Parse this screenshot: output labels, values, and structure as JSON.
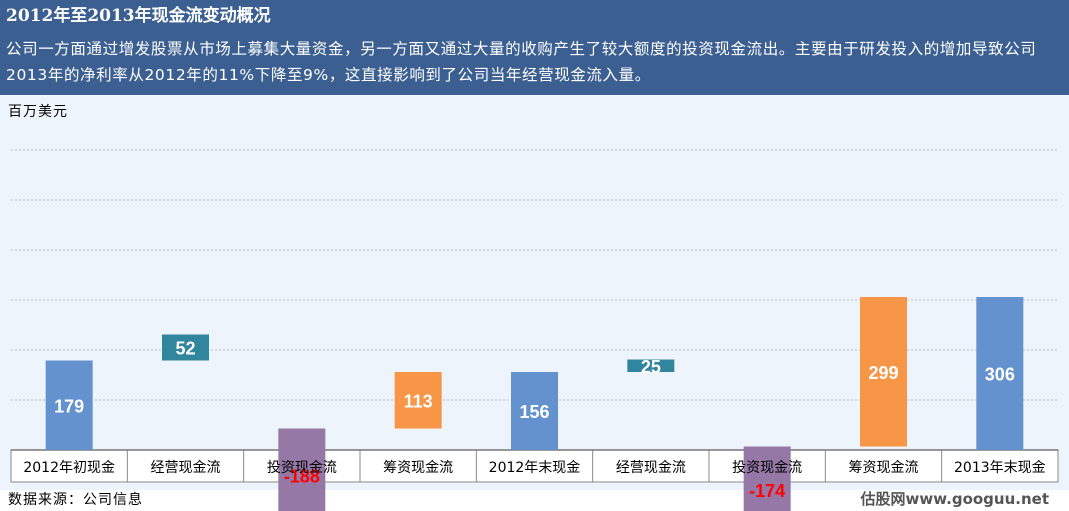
{
  "title": "2012年至2013年现金流变动概况",
  "subtitle": "公司一方面通过增发股票从市场上募集大量资金，另一方面又通过大量的收购产生了较大额度的投资现金流出。主要由于研发投入的增加导致公司2013年的净利率从2012年的11%下降至9%，这直接影响到了公司当年经营现金流入量。",
  "unit_label": "百万美元",
  "source": "数据来源：公司信息",
  "watermark": "估股网www.googuu.net",
  "colors": {
    "header_bg": "#3b5f91",
    "plot_bg": "#eef4fb",
    "cash": "#6492cf",
    "operating": "#31859c",
    "investing": "#9578a5",
    "financing": "#f79646",
    "negative_label": "#ff0000",
    "positive_label": "#ffffff"
  },
  "chart_data": {
    "type": "bar",
    "subtype": "waterfall",
    "grid": true,
    "ylim": [
      0,
      610
    ],
    "categories": [
      "2012年初现金",
      "经营现金流",
      "投资现金流",
      "筹资现金流",
      "2012年末现金",
      "经营现金流",
      "投资现金流",
      "筹资现金流",
      "2013年末现金"
    ],
    "values": [
      179,
      52,
      -188,
      113,
      156,
      25,
      -174,
      299,
      306
    ],
    "value_labels": [
      "179",
      "52",
      "-188",
      "113",
      "156",
      "25",
      "-174",
      "299",
      "306"
    ],
    "kinds": [
      "total",
      "operating",
      "investing",
      "financing",
      "total",
      "operating",
      "investing",
      "financing",
      "total"
    ],
    "base": [
      0,
      179,
      43,
      43,
      0,
      156,
      7,
      7,
      0
    ]
  }
}
